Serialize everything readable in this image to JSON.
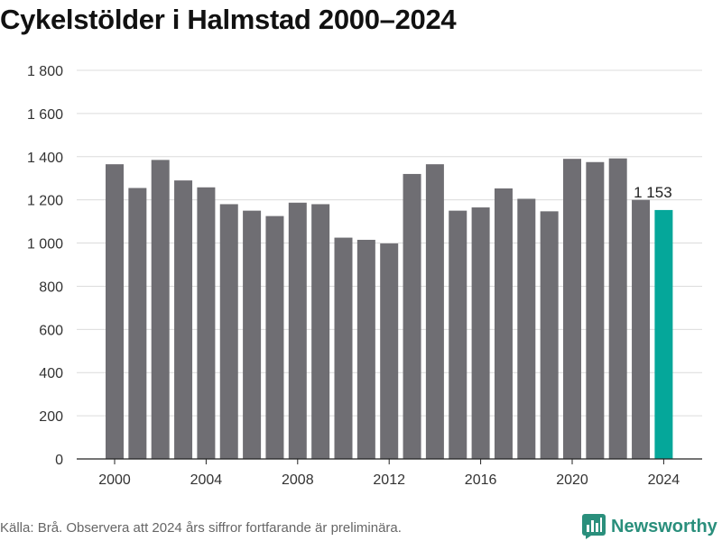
{
  "title": "Cykelstölder i Halmstad 2000–2024",
  "footer": {
    "source": "Källa: Brå. Observera att 2024 års siffror fortfarande är preliminära.",
    "brand": "Newsworthy"
  },
  "colors": {
    "bar": "#6f6e73",
    "highlight": "#05a79a",
    "grid": "#dcdcdc",
    "brand": "#2a8f7c"
  },
  "chart_data": {
    "type": "bar",
    "title": "Cykelstölder i Halmstad 2000–2024",
    "xlabel": "",
    "ylabel": "",
    "categories": [
      2000,
      2001,
      2002,
      2003,
      2004,
      2005,
      2006,
      2007,
      2008,
      2009,
      2010,
      2011,
      2012,
      2013,
      2014,
      2015,
      2016,
      2017,
      2018,
      2019,
      2020,
      2021,
      2022,
      2023,
      2024
    ],
    "values": [
      1365,
      1255,
      1385,
      1290,
      1258,
      1180,
      1150,
      1125,
      1187,
      1180,
      1025,
      1015,
      998,
      1320,
      1365,
      1150,
      1165,
      1253,
      1205,
      1147,
      1390,
      1375,
      1392,
      1200,
      1153
    ],
    "ylim": [
      0,
      1800
    ],
    "yticks": [
      0,
      200,
      400,
      600,
      800,
      1000,
      1200,
      1400,
      1600,
      1800
    ],
    "ytick_labels": [
      "0",
      "200",
      "400",
      "600",
      "800",
      "1 000",
      "1 200",
      "1 400",
      "1 600",
      "1 800"
    ],
    "xticks": [
      2000,
      2004,
      2008,
      2012,
      2016,
      2020,
      2024
    ],
    "xtick_labels": [
      "2000",
      "2004",
      "2008",
      "2012",
      "2016",
      "2020",
      "2024"
    ],
    "highlight_category": 2024,
    "annotation": {
      "category": 2024,
      "text": "1 153"
    },
    "grid": true,
    "legend": "none"
  }
}
